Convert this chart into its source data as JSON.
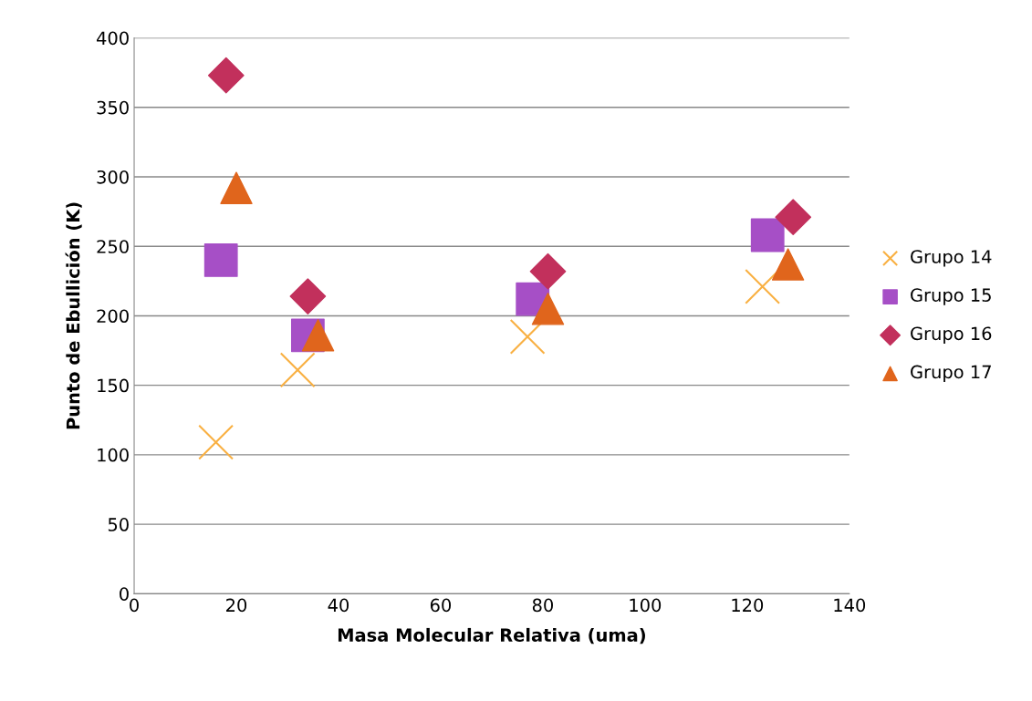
{
  "chart_data": {
    "type": "scatter",
    "xlabel": "Masa Molecular Relativa (uma)",
    "ylabel": "Punto de Ebullición (K)",
    "xlim": [
      0,
      140
    ],
    "xticks": [
      0,
      20,
      40,
      60,
      80,
      100,
      120,
      140
    ],
    "ylim": [
      0,
      400
    ],
    "yticks": [
      0,
      50,
      100,
      150,
      200,
      250,
      300,
      350,
      400
    ],
    "grid": "y",
    "legend": "right",
    "series": [
      {
        "name": "Grupo 14",
        "color": "#f9b042",
        "marker": "cross",
        "x": [
          16,
          32,
          77,
          123
        ],
        "values": [
          109,
          161,
          185,
          221
        ]
      },
      {
        "name": "Grupo 15",
        "color": "#a64fc6",
        "marker": "square",
        "x": [
          17,
          34,
          78,
          124
        ],
        "values": [
          240,
          186,
          212,
          258
        ]
      },
      {
        "name": "Grupo 16",
        "color": "#c2305c",
        "marker": "diamond",
        "x": [
          18,
          34,
          81,
          129
        ],
        "values": [
          373,
          214,
          232,
          271
        ]
      },
      {
        "name": "Grupo 17",
        "color": "#e0651c",
        "marker": "triangle",
        "x": [
          20,
          36,
          81,
          128
        ],
        "values": [
          292,
          186,
          205,
          237
        ]
      }
    ]
  }
}
